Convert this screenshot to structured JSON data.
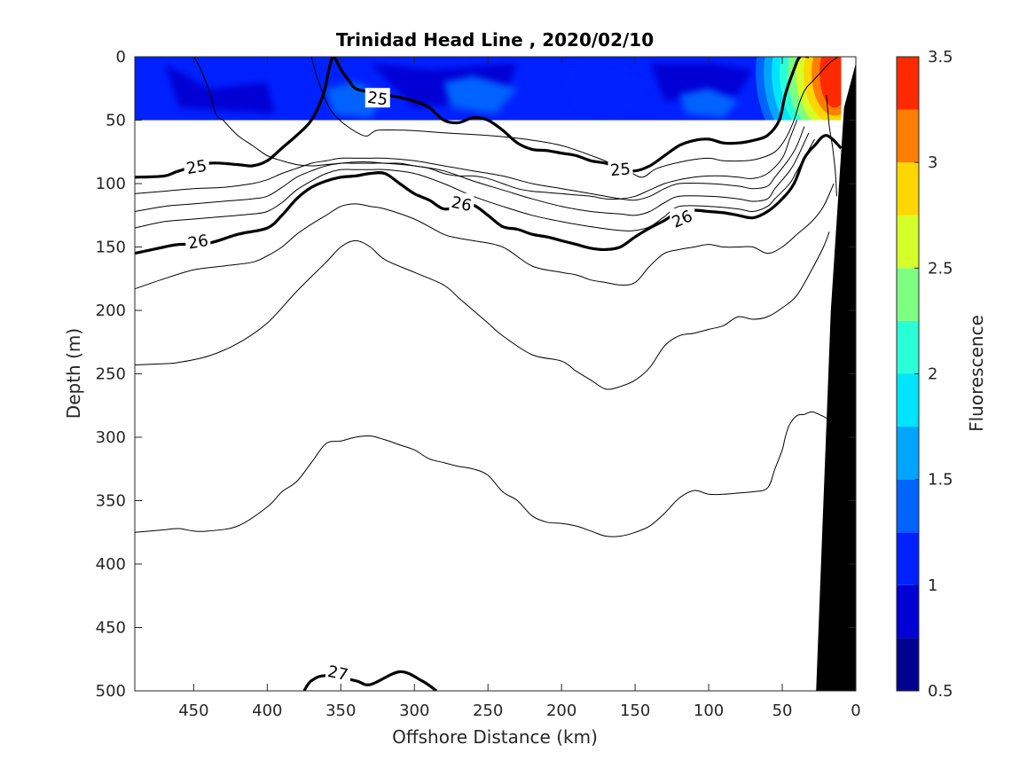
{
  "chart_data": {
    "type": "heatmap",
    "title": "Trinidad Head Line , 2020/02/10",
    "xlabel": "Offshore Distance (km)",
    "ylabel": "Depth (m)",
    "colorbar_label": "Fluorescence",
    "xlim": [
      490,
      0
    ],
    "ylim": [
      500,
      0
    ],
    "x_reversed": true,
    "y_reversed": true,
    "xticks": [
      450,
      400,
      350,
      300,
      250,
      200,
      150,
      100,
      50,
      0
    ],
    "yticks": [
      0,
      50,
      100,
      150,
      200,
      250,
      300,
      350,
      400,
      450,
      500
    ],
    "colorbar": {
      "range": [
        0.5,
        3.5
      ],
      "ticks": [
        "0.5",
        "1",
        "1.5",
        "2",
        "2.5",
        "3",
        "3.5"
      ],
      "levels": [
        0.5,
        0.75,
        1.0,
        1.25,
        1.5,
        1.75,
        2.0,
        2.25,
        2.5,
        2.75,
        3.0,
        3.25,
        3.5
      ],
      "colors": [
        "#00008f",
        "#0000d4",
        "#0021ff",
        "#0064ff",
        "#00a5ff",
        "#00e5ff",
        "#29ffd6",
        "#7dff82",
        "#d6ff29",
        "#ffd600",
        "#ff7d00",
        "#ff2900",
        "#d40000"
      ]
    },
    "fluorescence_field": {
      "depth_range": [
        0,
        50
      ],
      "distance_range": [
        490,
        10
      ],
      "background_value": 1.1,
      "regions": [
        {
          "x": [
            470,
            440,
            400,
            395,
            460
          ],
          "y": [
            5,
            25,
            20,
            45,
            40
          ],
          "value": 0.9
        },
        {
          "x": [
            330,
            290,
            230,
            240,
            300
          ],
          "y": [
            5,
            10,
            5,
            35,
            40
          ],
          "value": 0.9
        },
        {
          "x": [
            200,
            160,
            140,
            150,
            190
          ],
          "y": [
            5,
            8,
            25,
            45,
            40
          ],
          "value": 1.0
        },
        {
          "x": [
            140,
            100,
            70,
            80,
            130
          ],
          "y": [
            5,
            5,
            10,
            30,
            35
          ],
          "value": 0.8
        },
        {
          "x": [
            280,
            260,
            230,
            245,
            275
          ],
          "y": [
            20,
            15,
            25,
            45,
            40
          ],
          "value": 1.3
        },
        {
          "x": [
            360,
            340,
            320,
            330,
            355
          ],
          "y": [
            25,
            20,
            30,
            48,
            45
          ],
          "value": 1.3
        },
        {
          "x": [
            120,
            100,
            80,
            90,
            115
          ],
          "y": [
            30,
            25,
            35,
            48,
            45
          ],
          "value": 1.3
        }
      ],
      "nearshore_values": [
        1.25,
        1.5,
        1.75,
        2.0,
        2.25,
        2.5,
        2.75,
        3.0,
        3.25
      ],
      "nearshore_peak": {
        "distance": 18,
        "depth": 10,
        "value": 3.3
      }
    },
    "contours": {
      "labeled_levels": [
        "25",
        "25",
        "26",
        "26",
        "26",
        "27"
      ],
      "level_25": {
        "label": "25",
        "x": [
          490,
          470,
          460,
          440,
          420,
          410,
          400,
          390,
          380,
          370,
          362,
          358,
          355,
          350,
          345,
          340,
          330,
          320,
          310,
          300,
          290,
          280,
          270,
          260,
          250,
          240,
          230,
          220,
          210,
          200,
          190,
          180,
          170,
          160,
          150,
          140,
          130,
          120,
          110,
          100,
          90,
          80,
          70,
          60,
          52,
          48,
          42,
          38,
          32
        ],
        "y": [
          95,
          94,
          90,
          84,
          85,
          86,
          82,
          72,
          62,
          50,
          30,
          10,
          0,
          10,
          18,
          25,
          28,
          30,
          32,
          35,
          40,
          50,
          52,
          48,
          50,
          58,
          68,
          73,
          74,
          76,
          78,
          82,
          84,
          88,
          90,
          86,
          78,
          70,
          66,
          65,
          68,
          68,
          66,
          62,
          50,
          30,
          10,
          0,
          0
        ]
      },
      "level_26": {
        "label": "26",
        "x": [
          490,
          470,
          460,
          440,
          420,
          400,
          390,
          380,
          370,
          360,
          350,
          340,
          330,
          320,
          310,
          300,
          290,
          280,
          270,
          260,
          250,
          240,
          230,
          220,
          210,
          200,
          190,
          180,
          170,
          160,
          150,
          140,
          130,
          120,
          110,
          100,
          90,
          80,
          70,
          60,
          50,
          42,
          35,
          28,
          20,
          10
        ],
        "y": [
          155,
          150,
          148,
          147,
          140,
          135,
          125,
          112,
          103,
          98,
          95,
          94,
          92,
          92,
          100,
          108,
          113,
          120,
          118,
          117,
          125,
          134,
          136,
          140,
          142,
          145,
          148,
          151,
          152,
          150,
          142,
          135,
          129,
          122,
          121,
          122,
          123,
          125,
          127,
          122,
          112,
          100,
          80,
          70,
          62,
          72
        ]
      },
      "level_27": {
        "label": "27",
        "x": [
          375,
          370,
          360,
          340,
          330,
          310,
          295,
          285
        ],
        "y": [
          500,
          492,
          488,
          492,
          495,
          485,
          492,
          500
        ]
      },
      "thin": [
        {
          "x": [
            490,
            475,
            460,
            450,
            440,
            435,
            430
          ],
          "y": [
            0,
            0,
            0,
            0,
            25,
            45,
            50
          ]
        },
        {
          "x": [
            370,
            365,
            355,
            335,
            325,
            305,
            280,
            250,
            225,
            200,
            175,
            155,
            145,
            135,
            115,
            100,
            90,
            75,
            65,
            55,
            48,
            42,
            38,
            34,
            30,
            26,
            22,
            18,
            12
          ],
          "y": [
            0,
            20,
            45,
            62,
            58,
            58,
            60,
            62,
            65,
            70,
            80,
            90,
            95,
            88,
            82,
            80,
            82,
            82,
            80,
            75,
            65,
            50,
            35,
            25,
            20,
            15,
            10,
            5,
            0
          ]
        },
        {
          "x": [
            430,
            420,
            410,
            400,
            390,
            380,
            370,
            360,
            350,
            340,
            330,
            320,
            310,
            300,
            290,
            280,
            270,
            260,
            250,
            240,
            230,
            220,
            210,
            200,
            190,
            180,
            170,
            160,
            150,
            140,
            130,
            120,
            110,
            100,
            90,
            80,
            70,
            60,
            50,
            45,
            40
          ],
          "y": [
            50,
            62,
            70,
            78,
            82,
            85,
            86,
            85,
            84,
            83,
            83,
            84,
            84,
            86,
            88,
            92,
            94,
            94,
            96,
            100,
            104,
            106,
            107,
            108,
            109,
            110,
            112,
            112,
            110,
            105,
            100,
            97,
            95,
            94,
            94,
            95,
            96,
            92,
            80,
            65,
            50
          ]
        },
        {
          "x": [
            490,
            470,
            450,
            430,
            410,
            400,
            390,
            380,
            370,
            360,
            350,
            340,
            330,
            320,
            300,
            280,
            260,
            240,
            220,
            200,
            180,
            160,
            150,
            140,
            130,
            120,
            100,
            80,
            70,
            60,
            55,
            45,
            40,
            35
          ],
          "y": [
            108,
            106,
            104,
            103,
            100,
            97,
            92,
            88,
            84,
            82,
            80,
            80,
            80,
            80,
            82,
            86,
            90,
            94,
            100,
            104,
            108,
            112,
            113,
            110,
            104,
            100,
            100,
            102,
            104,
            102,
            95,
            80,
            70,
            55
          ]
        },
        {
          "x": [
            490,
            470,
            450,
            430,
            410,
            400,
            390,
            380,
            370,
            360,
            350,
            340,
            330,
            320,
            300,
            280,
            260,
            240,
            220,
            200,
            180,
            160,
            150,
            140,
            130,
            120,
            100,
            80,
            70,
            60,
            55,
            45,
            40,
            32
          ],
          "y": [
            122,
            118,
            116,
            114,
            112,
            110,
            103,
            95,
            90,
            86,
            84,
            84,
            84,
            84,
            86,
            90,
            98,
            105,
            112,
            118,
            122,
            124,
            125,
            122,
            115,
            110,
            110,
            112,
            114,
            112,
            104,
            90,
            80,
            60
          ]
        },
        {
          "x": [
            490,
            470,
            450,
            430,
            410,
            400,
            390,
            380,
            370,
            360,
            350,
            340,
            330,
            320,
            300,
            280,
            260,
            240,
            220,
            200,
            180,
            160,
            150,
            140,
            130,
            120,
            100,
            80,
            70,
            60,
            55,
            45,
            40,
            28
          ],
          "y": [
            135,
            130,
            128,
            126,
            124,
            122,
            115,
            105,
            98,
            92,
            89,
            89,
            89,
            89,
            92,
            100,
            110,
            118,
            125,
            130,
            134,
            137,
            137,
            134,
            126,
            118,
            118,
            120,
            122,
            118,
            112,
            100,
            90,
            65
          ]
        },
        {
          "x": [
            490,
            470,
            450,
            430,
            410,
            400,
            390,
            380,
            370,
            360,
            350,
            340,
            330,
            320,
            300,
            280,
            270,
            260,
            240,
            220,
            200,
            190,
            180,
            170,
            160,
            150,
            140,
            130,
            120,
            110,
            100,
            90,
            80,
            70,
            60,
            50,
            40,
            30,
            22,
            15
          ],
          "y": [
            183,
            175,
            168,
            165,
            162,
            157,
            150,
            140,
            132,
            125,
            118,
            116,
            118,
            120,
            128,
            140,
            143,
            145,
            150,
            165,
            170,
            172,
            176,
            178,
            180,
            178,
            165,
            155,
            152,
            150,
            148,
            150,
            150,
            150,
            155,
            150,
            140,
            130,
            118,
            100
          ]
        },
        {
          "x": [
            490,
            470,
            460,
            440,
            420,
            400,
            380,
            360,
            350,
            340,
            330,
            320,
            300,
            280,
            270,
            260,
            250,
            240,
            220,
            200,
            190,
            180,
            170,
            160,
            150,
            140,
            130,
            120,
            110,
            100,
            90,
            80,
            70,
            60,
            50,
            40,
            30,
            22,
            18
          ],
          "y": [
            243,
            242,
            241,
            236,
            226,
            210,
            185,
            162,
            150,
            145,
            150,
            160,
            170,
            180,
            190,
            200,
            210,
            220,
            235,
            240,
            248,
            255,
            262,
            260,
            255,
            245,
            228,
            220,
            218,
            215,
            212,
            205,
            207,
            205,
            198,
            188,
            168,
            150,
            138
          ]
        },
        {
          "x": [
            490,
            470,
            460,
            450,
            440,
            420,
            400,
            390,
            380,
            370,
            360,
            350,
            340,
            330,
            320,
            310,
            300,
            290,
            280,
            270,
            260,
            250,
            240,
            230,
            220,
            210,
            200,
            190,
            180,
            170,
            160,
            150,
            140,
            130,
            120,
            110,
            100,
            90,
            80,
            70,
            60,
            55,
            50,
            48,
            45,
            40,
            35,
            30,
            25,
            20,
            15
          ],
          "y": [
            375,
            373,
            372,
            374,
            374,
            370,
            355,
            343,
            335,
            320,
            305,
            303,
            300,
            299,
            302,
            306,
            310,
            317,
            320,
            323,
            325,
            330,
            343,
            350,
            362,
            367,
            368,
            370,
            374,
            378,
            378,
            375,
            370,
            360,
            348,
            342,
            345,
            345,
            344,
            343,
            340,
            325,
            310,
            300,
            290,
            283,
            282,
            280,
            282,
            285,
            290
          ]
        },
        {
          "x": [
            20,
            18,
            16,
            14,
            13
          ],
          "y": [
            30,
            55,
            70,
            90,
            110
          ]
        }
      ]
    },
    "bathymetry": {
      "distance": [
        27,
        17,
        8,
        0,
        0
      ],
      "depth": [
        500,
        200,
        40,
        5,
        500
      ]
    }
  }
}
